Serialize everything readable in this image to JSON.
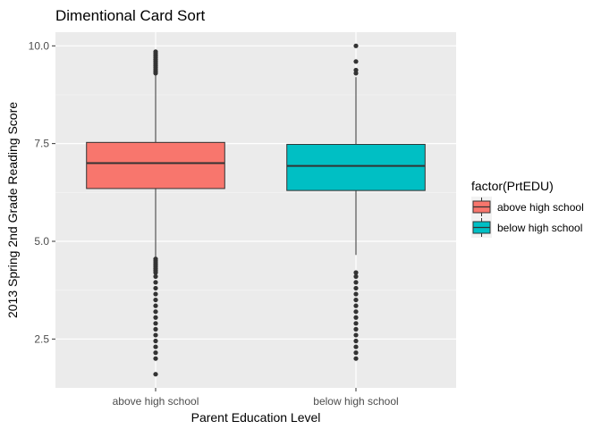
{
  "chart_data": {
    "type": "boxplot",
    "title": "Dimentional Card Sort",
    "xlabel": "Parent Education Level",
    "ylabel": "2013 Spring 2nd Grade Reading Score",
    "categories": [
      "above high school",
      "below high school"
    ],
    "ylim": [
      1.25,
      10.35
    ],
    "y_ticks": [
      2.5,
      5.0,
      7.5,
      10.0
    ],
    "y_tick_labels": [
      "2.5",
      "5.0",
      "7.5",
      "10.0"
    ],
    "legend": {
      "title": "factor(PrtEDU)",
      "position": "right",
      "entries": [
        {
          "label": "above high school",
          "color": "#F8766D"
        },
        {
          "label": "below high school",
          "color": "#00BFC4"
        }
      ]
    },
    "series": [
      {
        "category": "above high school",
        "color": "#F8766D",
        "whisker_low": 4.6,
        "q1": 6.35,
        "median": 7.0,
        "q3": 7.53,
        "whisker_high": 9.25,
        "outliers_high": [
          9.3,
          9.35,
          9.4,
          9.45,
          9.5,
          9.55,
          9.6,
          9.65,
          9.7,
          9.75,
          9.8,
          9.85
        ],
        "outliers_low": [
          1.6,
          2.0,
          2.15,
          2.3,
          2.45,
          2.6,
          2.75,
          2.9,
          3.05,
          3.2,
          3.35,
          3.5,
          3.65,
          3.8,
          3.95,
          4.1,
          4.2,
          4.25,
          4.3,
          4.35,
          4.4,
          4.45,
          4.5,
          4.55
        ]
      },
      {
        "category": "below high school",
        "color": "#00BFC4",
        "whisker_low": 4.65,
        "q1": 6.3,
        "median": 6.93,
        "q3": 7.48,
        "whisker_high": 9.2,
        "outliers_high": [
          9.3,
          9.38,
          9.6,
          10.0
        ],
        "outliers_low": [
          2.0,
          2.15,
          2.3,
          2.45,
          2.6,
          2.75,
          2.9,
          3.05,
          3.2,
          3.35,
          3.5,
          3.65,
          3.8,
          3.95,
          4.1,
          4.2
        ]
      }
    ],
    "grid": true
  },
  "colors": {
    "panel_background": "#EBEBEB",
    "grid_major": "#FFFFFF",
    "grid_minor": "#F5F5F5",
    "outline": "#333333"
  }
}
